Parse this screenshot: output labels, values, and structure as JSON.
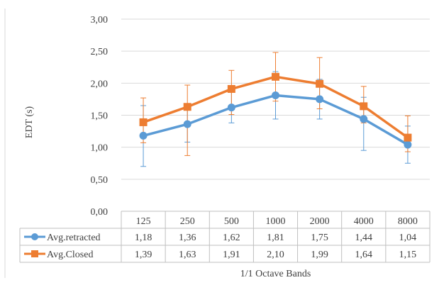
{
  "chart_data": {
    "type": "line",
    "xlabel": "1/1 Octave Bands",
    "ylabel": "EDT (s)",
    "ylim": [
      0,
      3
    ],
    "yticks": [
      "0,00",
      "0,50",
      "1,00",
      "1,50",
      "2,00",
      "2,50",
      "3,00"
    ],
    "grid": true,
    "legend": "in data table rows",
    "categories": [
      "125",
      "250",
      "500",
      "1000",
      "2000",
      "4000",
      "8000"
    ],
    "series": [
      {
        "name": "Avg.retracted",
        "color": "#5b9bd5",
        "marker": "circle",
        "values": [
          1.18,
          1.36,
          1.62,
          1.81,
          1.75,
          1.44,
          1.04
        ],
        "labels": [
          "1,18",
          "1,36",
          "1,62",
          "1,81",
          "1,75",
          "1,44",
          "1,04"
        ],
        "error_low": [
          0.7,
          1.08,
          1.38,
          1.44,
          1.44,
          0.95,
          0.75
        ],
        "error_high": [
          1.65,
          1.63,
          1.86,
          2.18,
          2.06,
          1.78,
          1.33
        ]
      },
      {
        "name": "Avg.Closed",
        "color": "#ed7d31",
        "marker": "square",
        "values": [
          1.39,
          1.63,
          1.91,
          2.1,
          1.99,
          1.64,
          1.15
        ],
        "labels": [
          "1,39",
          "1,63",
          "1,91",
          "2,10",
          "1,99",
          "1,64",
          "1,15"
        ],
        "error_low": [
          1.07,
          0.87,
          1.51,
          1.72,
          1.6,
          1.38,
          0.93
        ],
        "error_high": [
          1.77,
          1.97,
          2.2,
          2.48,
          2.4,
          1.95,
          1.49
        ]
      }
    ]
  }
}
